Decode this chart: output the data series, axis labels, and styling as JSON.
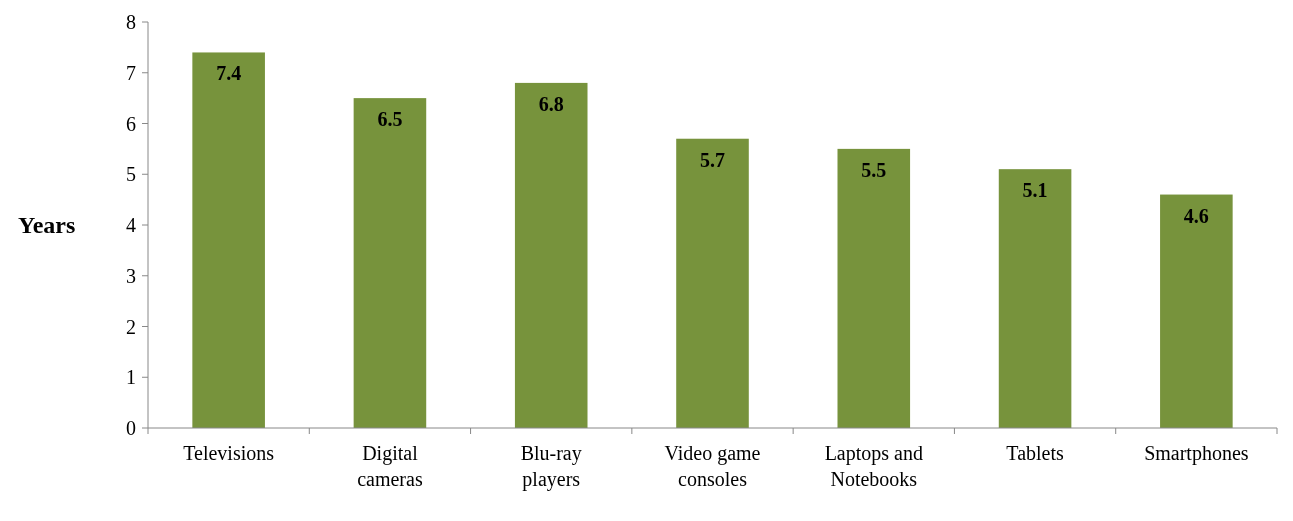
{
  "chart_data": {
    "type": "bar",
    "ylabel": "Years",
    "categories": [
      "Televisions",
      "Digital cameras",
      "Blu-ray players",
      "Video game consoles",
      "Laptops and Notebooks",
      "Tablets",
      "Smartphones"
    ],
    "values": [
      7.4,
      6.5,
      6.8,
      5.7,
      5.5,
      5.1,
      4.6
    ],
    "color": "#77933c",
    "ylim": [
      0,
      8
    ],
    "yticks": [
      0,
      1,
      2,
      3,
      4,
      5,
      6,
      7,
      8
    ],
    "data_labels": true,
    "grid": false
  }
}
